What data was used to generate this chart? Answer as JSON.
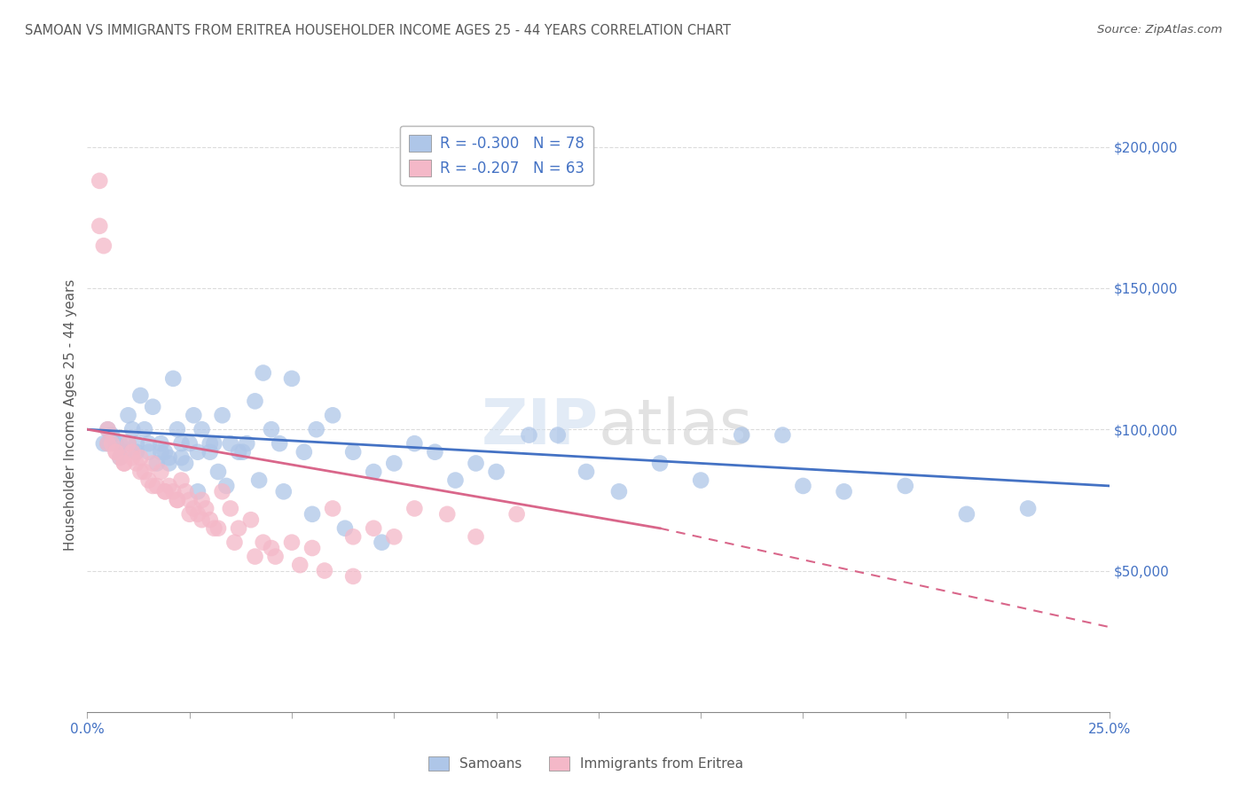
{
  "title": "SAMOAN VS IMMIGRANTS FROM ERITREA HOUSEHOLDER INCOME AGES 25 - 44 YEARS CORRELATION CHART",
  "source": "Source: ZipAtlas.com",
  "ylabel": "Householder Income Ages 25 - 44 years",
  "xlim": [
    0.0,
    25.0
  ],
  "ylim": [
    0,
    210000
  ],
  "samoans_color": "#aec6e8",
  "eritrea_color": "#f4b8c8",
  "samoans_line_color": "#4472c4",
  "eritrea_line_color": "#d9668a",
  "samoans_R": -0.3,
  "eritrea_R": -0.207,
  "samoans_N": 78,
  "eritrea_N": 63,
  "background_color": "#ffffff",
  "grid_color": "#cccccc",
  "title_color": "#595959",
  "axis_color": "#4472c4",
  "title_fontsize": 10.5,
  "samoans_x": [
    0.5,
    0.6,
    0.7,
    0.8,
    0.9,
    1.0,
    1.1,
    1.2,
    1.3,
    1.4,
    1.5,
    1.6,
    1.7,
    1.8,
    1.9,
    2.0,
    2.1,
    2.2,
    2.3,
    2.4,
    2.5,
    2.6,
    2.7,
    2.8,
    3.0,
    3.1,
    3.2,
    3.3,
    3.5,
    3.7,
    3.9,
    4.1,
    4.3,
    4.5,
    4.7,
    5.0,
    5.3,
    5.6,
    6.0,
    6.5,
    7.0,
    7.5,
    8.0,
    8.5,
    9.0,
    9.5,
    10.0,
    10.8,
    11.5,
    12.2,
    13.0,
    14.0,
    15.0,
    16.0,
    17.0,
    17.5,
    18.5,
    20.0,
    21.5,
    23.0,
    0.4,
    0.5,
    0.8,
    1.0,
    1.2,
    1.5,
    1.8,
    2.0,
    2.3,
    2.7,
    3.0,
    3.4,
    3.8,
    4.2,
    4.8,
    5.5,
    6.3,
    7.2
  ],
  "samoans_y": [
    100000,
    98000,
    95000,
    95000,
    92000,
    105000,
    100000,
    95000,
    112000,
    100000,
    92000,
    108000,
    88000,
    95000,
    92000,
    90000,
    118000,
    100000,
    95000,
    88000,
    95000,
    105000,
    92000,
    100000,
    92000,
    95000,
    85000,
    105000,
    95000,
    92000,
    95000,
    110000,
    120000,
    100000,
    95000,
    118000,
    92000,
    100000,
    105000,
    92000,
    85000,
    88000,
    95000,
    92000,
    82000,
    88000,
    85000,
    98000,
    98000,
    85000,
    78000,
    88000,
    82000,
    98000,
    98000,
    80000,
    78000,
    80000,
    70000,
    72000,
    95000,
    95000,
    90000,
    95000,
    92000,
    95000,
    92000,
    88000,
    90000,
    78000,
    95000,
    80000,
    92000,
    82000,
    78000,
    70000,
    65000,
    60000
  ],
  "eritrea_x": [
    0.3,
    0.4,
    0.5,
    0.6,
    0.7,
    0.8,
    0.9,
    1.0,
    1.1,
    1.2,
    1.3,
    1.4,
    1.5,
    1.6,
    1.7,
    1.8,
    1.9,
    2.0,
    2.1,
    2.2,
    2.3,
    2.4,
    2.5,
    2.6,
    2.7,
    2.8,
    2.9,
    3.0,
    3.1,
    3.3,
    3.5,
    3.7,
    4.0,
    4.3,
    4.6,
    5.0,
    5.5,
    6.0,
    6.5,
    7.0,
    7.5,
    8.0,
    8.8,
    9.5,
    10.5,
    0.3,
    0.5,
    0.7,
    0.9,
    1.1,
    1.3,
    1.6,
    1.9,
    2.2,
    2.5,
    2.8,
    3.2,
    3.6,
    4.1,
    4.5,
    5.2,
    5.8,
    6.5
  ],
  "eritrea_y": [
    188000,
    165000,
    100000,
    95000,
    92000,
    90000,
    88000,
    95000,
    92000,
    88000,
    90000,
    85000,
    82000,
    88000,
    80000,
    85000,
    78000,
    80000,
    78000,
    75000,
    82000,
    78000,
    75000,
    72000,
    70000,
    75000,
    72000,
    68000,
    65000,
    78000,
    72000,
    65000,
    68000,
    60000,
    55000,
    60000,
    58000,
    72000,
    62000,
    65000,
    62000,
    72000,
    70000,
    62000,
    70000,
    172000,
    95000,
    92000,
    88000,
    90000,
    85000,
    80000,
    78000,
    75000,
    70000,
    68000,
    65000,
    60000,
    55000,
    58000,
    52000,
    50000,
    48000
  ],
  "samoans_line_x0": 0,
  "samoans_line_y0": 100000,
  "samoans_line_x1": 25,
  "samoans_line_y1": 80000,
  "eritrea_line_x0": 0,
  "eritrea_line_y0": 100000,
  "eritrea_line_x1_solid": 14,
  "eritrea_line_y1_solid": 65000,
  "eritrea_line_x1_dash": 25,
  "eritrea_line_y1_dash": 30000
}
